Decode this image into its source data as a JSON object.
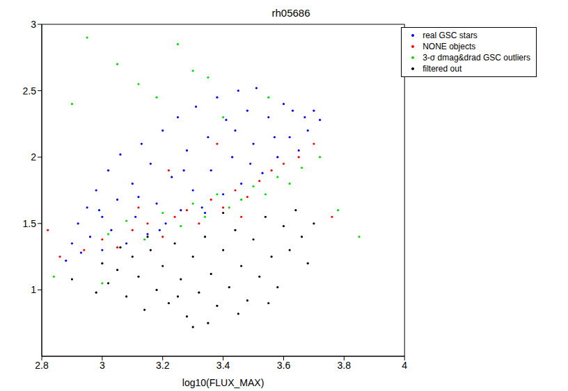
{
  "chart_data": {
    "type": "scatter",
    "title": "rh05686",
    "x_label": "log10(FLUX_MAX)",
    "xlim": [
      2.8,
      4
    ],
    "xticks": [
      2.8,
      3,
      3.2,
      3.4,
      3.6,
      3.8,
      4
    ],
    "ylim": [
      0.5,
      3
    ],
    "yticks": [
      1,
      1.5,
      2,
      2.5,
      3
    ],
    "grid": false,
    "legend": "upper right",
    "marker": "dot",
    "series": [
      {
        "name": "real GSC stars",
        "color": "#0000ff",
        "x": [
          2.88,
          2.9,
          2.92,
          2.93,
          2.95,
          2.96,
          2.98,
          3.0,
          3.0,
          3.02,
          3.03,
          3.05,
          3.06,
          3.08,
          3.1,
          3.11,
          3.13,
          3.15,
          3.16,
          3.18,
          3.2,
          3.21,
          3.23,
          3.25,
          3.26,
          3.28,
          3.3,
          3.31,
          3.33,
          3.35,
          3.36,
          3.38,
          3.4,
          3.41,
          3.43,
          3.45,
          3.46,
          3.48,
          3.5,
          3.51,
          3.53,
          3.55,
          3.58,
          3.6,
          3.62,
          3.63,
          3.65,
          3.67,
          3.68,
          3.7,
          3.72,
          3.57,
          3.44,
          3.27,
          3.12,
          2.99,
          3.19,
          3.34,
          3.49
        ],
        "y": [
          1.22,
          1.35,
          1.5,
          1.28,
          1.62,
          1.4,
          1.75,
          1.3,
          1.55,
          1.9,
          1.45,
          1.68,
          2.02,
          1.35,
          1.8,
          1.55,
          2.1,
          1.42,
          1.95,
          1.65,
          2.2,
          1.5,
          1.85,
          2.3,
          1.6,
          2.05,
          1.75,
          2.38,
          1.62,
          2.15,
          1.9,
          2.45,
          1.72,
          2.28,
          2.0,
          2.5,
          1.8,
          2.35,
          2.1,
          2.52,
          1.88,
          2.3,
          2.0,
          2.4,
          2.15,
          2.35,
          2.05,
          2.3,
          2.2,
          2.35,
          2.28,
          2.15,
          2.2,
          1.9,
          1.7,
          1.6,
          1.45,
          1.58,
          1.95
        ]
      },
      {
        "name": "NONE objects",
        "color": "#ff0000",
        "x": [
          2.86,
          2.94,
          3.0,
          3.05,
          3.1,
          3.15,
          3.2,
          3.24,
          3.28,
          3.32,
          3.36,
          3.4,
          3.44,
          3.48,
          3.52,
          3.56,
          3.6,
          3.65,
          3.7,
          3.76,
          2.82,
          3.22,
          3.38,
          3.12,
          3.46
        ],
        "y": [
          1.25,
          1.3,
          1.38,
          1.32,
          1.45,
          1.5,
          1.4,
          1.55,
          1.6,
          1.5,
          1.68,
          1.62,
          1.75,
          1.7,
          1.82,
          1.9,
          1.95,
          2.0,
          2.1,
          1.55,
          1.45,
          1.9,
          2.1,
          1.62,
          1.55
        ]
      },
      {
        "name": "3-σ dmag&drad GSC outliers",
        "color": "#00dd00",
        "x": [
          2.95,
          3.05,
          3.12,
          3.25,
          3.3,
          2.9,
          3.18,
          3.35,
          3.02,
          3.08,
          3.14,
          3.2,
          3.26,
          3.3,
          3.34,
          3.38,
          3.42,
          3.46,
          3.5,
          3.54,
          3.58,
          3.62,
          3.66,
          3.72,
          3.78,
          3.85,
          2.84,
          3.0,
          3.4,
          3.55
        ],
        "y": [
          2.9,
          2.7,
          2.55,
          2.85,
          2.65,
          2.4,
          2.45,
          2.6,
          1.42,
          1.52,
          1.38,
          1.58,
          1.48,
          1.65,
          1.55,
          1.72,
          1.62,
          1.68,
          1.78,
          1.72,
          1.85,
          1.8,
          1.92,
          2.0,
          1.6,
          1.4,
          1.1,
          1.05,
          2.3,
          2.45
        ]
      },
      {
        "name": "filtered out",
        "color": "#000000",
        "x": [
          3.0,
          3.02,
          3.05,
          3.08,
          3.1,
          3.12,
          3.14,
          3.16,
          3.18,
          3.2,
          3.22,
          3.24,
          3.26,
          3.28,
          3.3,
          3.32,
          3.34,
          3.36,
          3.38,
          3.4,
          3.42,
          3.44,
          3.46,
          3.48,
          3.5,
          3.52,
          3.54,
          3.56,
          3.58,
          3.6,
          3.62,
          3.64,
          3.66,
          3.3,
          3.35,
          3.25,
          3.45,
          3.15,
          2.98,
          3.06,
          3.7,
          3.4,
          2.9,
          3.55,
          3.68
        ],
        "y": [
          1.2,
          1.05,
          1.15,
          0.95,
          1.25,
          1.1,
          0.85,
          1.3,
          1.0,
          1.18,
          0.9,
          1.35,
          1.08,
          0.8,
          1.25,
          0.98,
          1.4,
          1.12,
          0.88,
          1.3,
          1.02,
          1.45,
          1.18,
          0.92,
          1.38,
          1.1,
          1.55,
          1.25,
          1.02,
          1.48,
          1.3,
          1.6,
          1.4,
          0.72,
          0.75,
          0.95,
          0.82,
          1.4,
          0.98,
          1.32,
          1.5,
          1.58,
          1.08,
          0.9,
          1.2
        ]
      }
    ]
  }
}
